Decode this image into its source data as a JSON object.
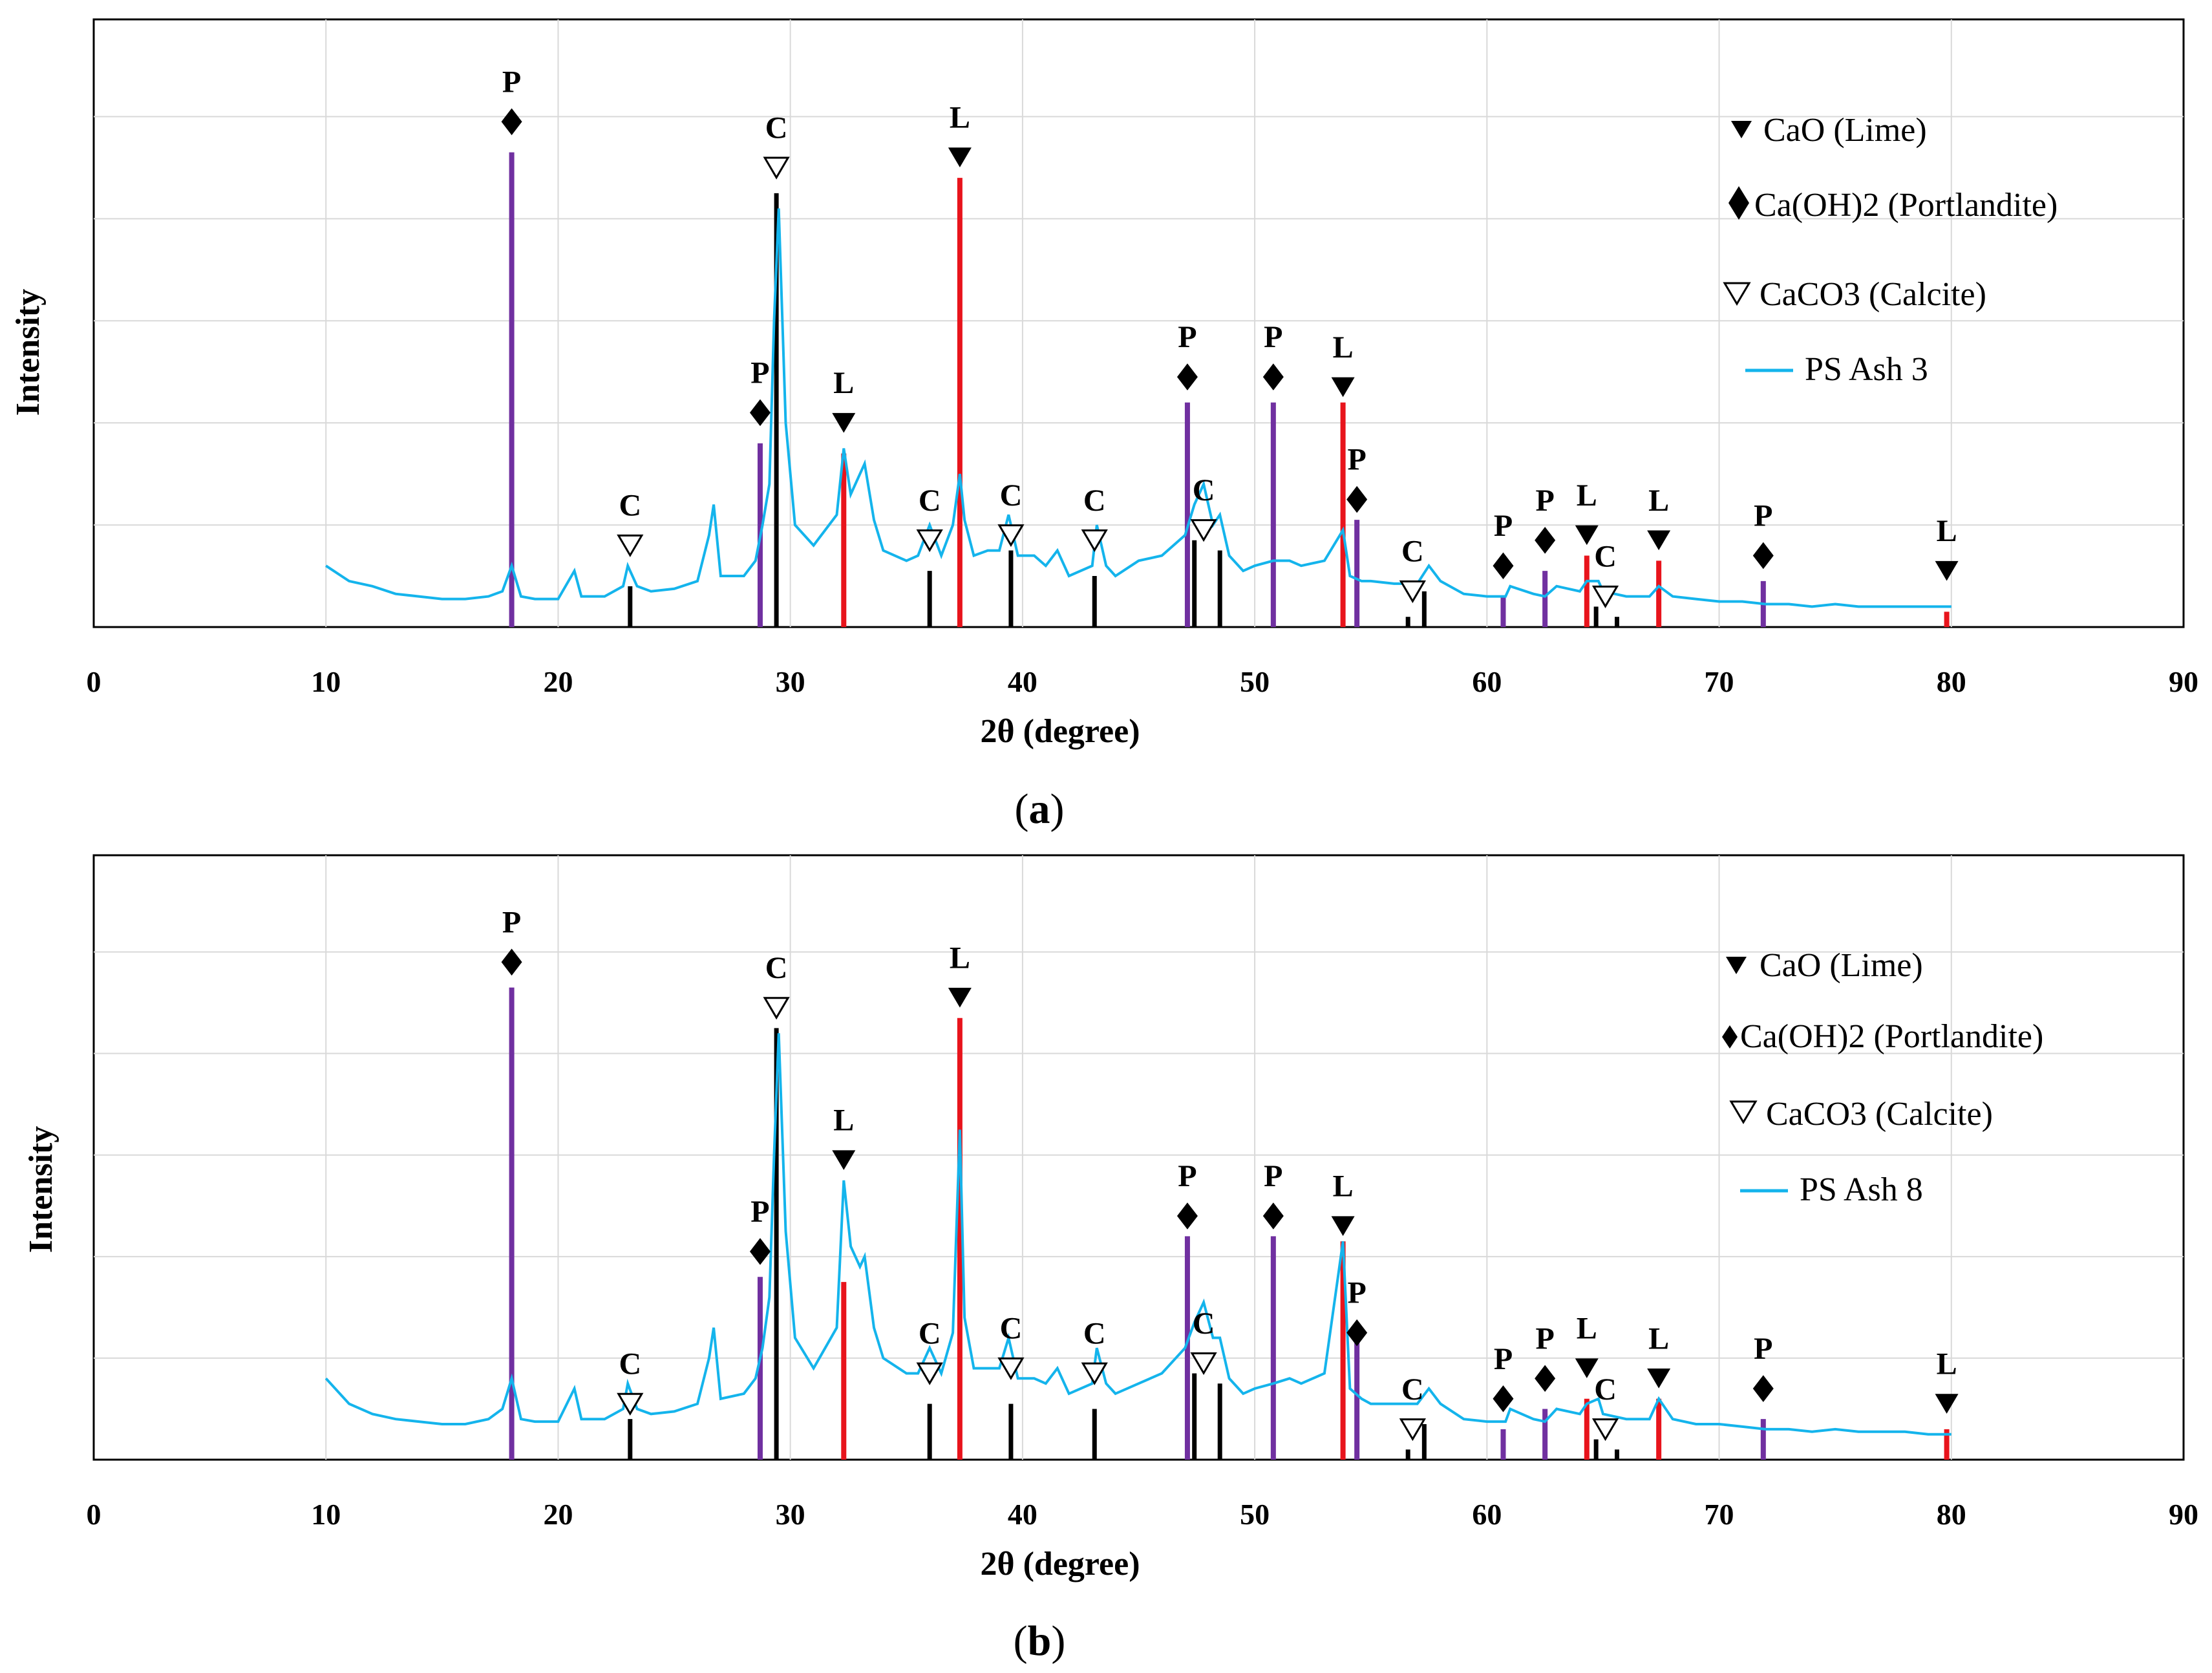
{
  "legend": {
    "lime": "CaO  (Lime)",
    "portlandite": "Ca(OH)2 (Portlandite)",
    "calcite": "CaCO3 (Calcite)"
  },
  "panels": [
    {
      "label_open": "(",
      "label_letter": "a",
      "label_close": ")"
    },
    {
      "label_open": "(",
      "label_letter": "b",
      "label_close": ")"
    }
  ],
  "colors": {
    "lime": "#e8141c",
    "portlandite": "#7030a0",
    "calcite": "#000000",
    "pattern": "#14b4ec",
    "grid": "#d9d9d9"
  },
  "chart_data": [
    {
      "type": "line",
      "xlabel": "2θ (degree)",
      "ylabel": "Intensity",
      "xlim": [
        0,
        90
      ],
      "xticks": [
        0,
        10,
        20,
        30,
        40,
        50,
        60,
        70,
        80,
        90
      ],
      "ylim": [
        0,
        100
      ],
      "y_grid_lines": [
        20,
        40,
        60,
        80,
        100
      ],
      "grid": true,
      "legend_position": "top-right",
      "series": [
        {
          "name": "PS Ash 3",
          "x": [
            10,
            11,
            12,
            13,
            14,
            15,
            16,
            17,
            17.6,
            18,
            18.4,
            19,
            20,
            20.7,
            21,
            22,
            22.8,
            23,
            23.4,
            24,
            25,
            26,
            26.5,
            26.7,
            27,
            28,
            28.5,
            28.8,
            29.1,
            29.3,
            29.5,
            29.8,
            30.2,
            31,
            32,
            32.3,
            32.6,
            33,
            33.2,
            33.6,
            34,
            35,
            35.5,
            36,
            36.5,
            37,
            37.3,
            37.5,
            37.9,
            38.5,
            39,
            39.4,
            39.8,
            40.5,
            41,
            41.5,
            42,
            43,
            43.2,
            43.6,
            44,
            45,
            46,
            47,
            47.4,
            47.8,
            48.2,
            48.5,
            48.9,
            49.5,
            50,
            50.8,
            51.5,
            52,
            53,
            53.8,
            54.1,
            54.6,
            55,
            56,
            57,
            57.5,
            58,
            59,
            60,
            60.8,
            61,
            62,
            62.5,
            63,
            64,
            64.3,
            64.8,
            65,
            66,
            67,
            67.4,
            68,
            69,
            70,
            71,
            72,
            73,
            74,
            75,
            76,
            77,
            78,
            79,
            80
          ],
          "y": [
            12,
            9,
            8,
            6.5,
            6,
            5.5,
            5.5,
            6,
            7,
            12,
            6,
            5.5,
            5.5,
            11,
            6,
            6,
            8,
            12,
            8,
            7,
            7.5,
            9,
            18,
            24,
            10,
            10,
            13,
            20,
            28,
            60,
            82,
            40,
            20,
            16,
            22,
            35,
            26,
            30,
            32,
            21,
            15,
            13,
            14,
            20,
            14,
            20,
            30,
            21,
            14,
            15,
            15,
            22,
            14,
            14,
            12,
            15,
            10,
            12,
            20,
            12,
            10,
            13,
            14,
            18,
            24,
            28,
            20,
            22,
            14,
            11,
            12,
            13,
            13,
            12,
            13,
            19,
            10,
            9,
            9,
            8.5,
            8.5,
            12,
            9,
            6.5,
            6,
            6,
            8,
            6.5,
            6,
            8,
            7,
            9,
            9,
            7,
            6,
            6,
            8,
            6,
            5.5,
            5,
            5,
            4.5,
            4.5,
            4,
            4.5,
            4,
            4,
            4,
            4,
            4
          ]
        }
      ],
      "reference_peaks": {
        "lime": {
          "letter": "L",
          "x": [
            32.3,
            37.3,
            53.8,
            64.3,
            67.4,
            79.8
          ],
          "y": [
            34,
            88,
            44,
            14,
            13,
            3
          ]
        },
        "portlandite": {
          "letter": "P",
          "x": [
            18,
            28.7,
            47.1,
            50.8,
            54.4,
            60.7,
            62.5,
            71.9
          ],
          "y": [
            93,
            36,
            44,
            44,
            21,
            6,
            11,
            9
          ]
        },
        "calcite": {
          "letter": "C",
          "x": [
            23.1,
            29.4,
            36,
            39.5,
            43.1,
            47.4,
            48.5,
            56.6,
            57.3,
            64.7,
            65.6
          ],
          "y": [
            8,
            85,
            11,
            15,
            10,
            17,
            15,
            2,
            7,
            4,
            2
          ]
        }
      },
      "markers": {
        "lime": {
          "x": [
            32.3,
            37.3,
            53.8,
            64.3,
            67.4,
            79.8
          ],
          "y": [
            40,
            92,
            47,
            18,
            17,
            11
          ]
        },
        "portlandite": {
          "x": [
            18,
            28.7,
            47.1,
            50.8,
            54.4,
            60.7,
            62.5,
            71.9
          ],
          "y": [
            99,
            42,
            49,
            49,
            25,
            12,
            17,
            14
          ]
        },
        "calcite": {
          "x": [
            23.1,
            29.4,
            36,
            39.5,
            43.1,
            47.8,
            56.8,
            65.1
          ],
          "y": [
            16,
            90,
            17,
            18,
            17,
            19,
            7,
            6
          ]
        }
      }
    },
    {
      "type": "line",
      "xlabel": "2θ (degree)",
      "ylabel": "Intensity",
      "xlim": [
        0,
        90
      ],
      "xticks": [
        0,
        10,
        20,
        30,
        40,
        50,
        60,
        70,
        80,
        90
      ],
      "ylim": [
        0,
        100
      ],
      "y_grid_lines": [
        20,
        40,
        60,
        80,
        100
      ],
      "grid": true,
      "legend_position": "top-right",
      "series": [
        {
          "name": "PS Ash 8",
          "x": [
            10,
            11,
            12,
            13,
            14,
            15,
            16,
            17,
            17.6,
            18,
            18.4,
            19,
            20,
            20.7,
            21,
            22,
            22.8,
            23,
            23.4,
            24,
            25,
            26,
            26.5,
            26.7,
            27,
            28,
            28.5,
            28.8,
            29.1,
            29.3,
            29.5,
            29.8,
            30.2,
            31,
            32,
            32.3,
            32.6,
            33,
            33.2,
            33.6,
            34,
            35,
            35.5,
            36,
            36.5,
            37,
            37.3,
            37.5,
            37.9,
            38.5,
            39,
            39.4,
            39.8,
            40.5,
            41,
            41.5,
            42,
            43,
            43.2,
            43.6,
            44,
            45,
            46,
            47,
            47.4,
            47.8,
            48.2,
            48.5,
            48.9,
            49.5,
            50,
            50.8,
            51.5,
            52,
            53,
            53.8,
            54.1,
            54.6,
            55,
            56,
            57,
            57.5,
            58,
            59,
            60,
            60.8,
            61,
            62,
            62.5,
            63,
            64,
            64.3,
            64.8,
            65,
            66,
            67,
            67.4,
            68,
            69,
            70,
            71,
            72,
            73,
            74,
            75,
            76,
            77,
            78,
            79,
            80
          ],
          "y": [
            16,
            11,
            9,
            8,
            7.5,
            7,
            7,
            8,
            10,
            16,
            8,
            7.5,
            7.5,
            14,
            8,
            8,
            10,
            15,
            10,
            9,
            9.5,
            11,
            20,
            26,
            12,
            13,
            16,
            22,
            32,
            60,
            84,
            45,
            24,
            18,
            26,
            55,
            42,
            38,
            40,
            26,
            20,
            17,
            17,
            22,
            17,
            25,
            65,
            28,
            18,
            18,
            18,
            24,
            16,
            16,
            15,
            18,
            13,
            15,
            22,
            15,
            13,
            15,
            17,
            22,
            27,
            31,
            24,
            24,
            16,
            13,
            14,
            15,
            16,
            15,
            17,
            43,
            14,
            12,
            11,
            11,
            11,
            14,
            11,
            8,
            7.5,
            7.5,
            10,
            8,
            7.5,
            10,
            9,
            11,
            12,
            9,
            8,
            8,
            12,
            8,
            7,
            7,
            6.5,
            6,
            6,
            5.5,
            6,
            5.5,
            5.5,
            5.5,
            5,
            5
          ]
        }
      ],
      "reference_peaks": {
        "lime": {
          "letter": "L",
          "x": [
            32.3,
            37.3,
            53.8,
            64.3,
            67.4,
            79.8
          ],
          "y": [
            35,
            87,
            43,
            12,
            12,
            6
          ]
        },
        "portlandite": {
          "letter": "P",
          "x": [
            18,
            28.7,
            47.1,
            50.8,
            54.4,
            60.7,
            62.5,
            71.9
          ],
          "y": [
            93,
            36,
            44,
            44,
            24,
            6,
            10,
            8
          ]
        },
        "calcite": {
          "letter": "C",
          "x": [
            23.1,
            29.4,
            36,
            39.5,
            43.1,
            47.4,
            48.5,
            56.6,
            57.3,
            64.7,
            65.6
          ],
          "y": [
            8,
            85,
            11,
            11,
            10,
            17,
            15,
            2,
            7,
            4,
            2
          ]
        }
      },
      "markers": {
        "lime": {
          "x": [
            32.3,
            37.3,
            53.8,
            64.3,
            67.4,
            79.8
          ],
          "y": [
            59,
            91,
            46,
            18,
            16,
            11
          ]
        },
        "portlandite": {
          "x": [
            18,
            28.7,
            47.1,
            50.8,
            54.4,
            60.7,
            62.5,
            71.9
          ],
          "y": [
            98,
            41,
            48,
            48,
            25,
            12,
            16,
            14
          ]
        },
        "calcite": {
          "x": [
            23.1,
            29.4,
            36,
            39.5,
            43.1,
            47.8,
            56.8,
            65.1
          ],
          "y": [
            11,
            89,
            17,
            18,
            17,
            19,
            6,
            6
          ]
        }
      }
    }
  ]
}
